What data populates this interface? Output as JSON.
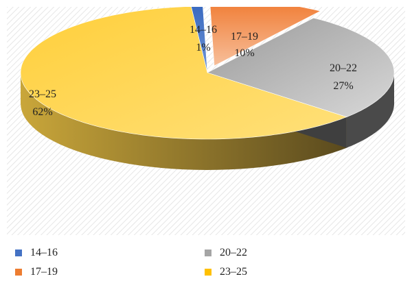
{
  "chart_data": {
    "type": "pie",
    "style": "3d-exploded-slice",
    "categories": [
      "14–16",
      "17–19",
      "20–22",
      "23–25"
    ],
    "values": [
      1,
      10,
      27,
      62
    ],
    "unit": "%",
    "data_labels": [
      {
        "category": "14–16",
        "value": "1%"
      },
      {
        "category": "17–19",
        "value": "10%"
      },
      {
        "category": "20–22",
        "value": "27%"
      },
      {
        "category": "23–25",
        "value": "62%"
      }
    ],
    "colors": [
      "#4472C4",
      "#ED7D31",
      "#A5A5A5",
      "#FFC000"
    ],
    "legend_position": "bottom",
    "background_pattern": "diagonal-hatch"
  },
  "legend": {
    "items": [
      {
        "label": "14–16",
        "color": "#4472C4"
      },
      {
        "label": "17–19",
        "color": "#ED7D31"
      },
      {
        "label": "20–22",
        "color": "#A5A5A5"
      },
      {
        "label": "23–25",
        "color": "#FFC000"
      }
    ]
  }
}
